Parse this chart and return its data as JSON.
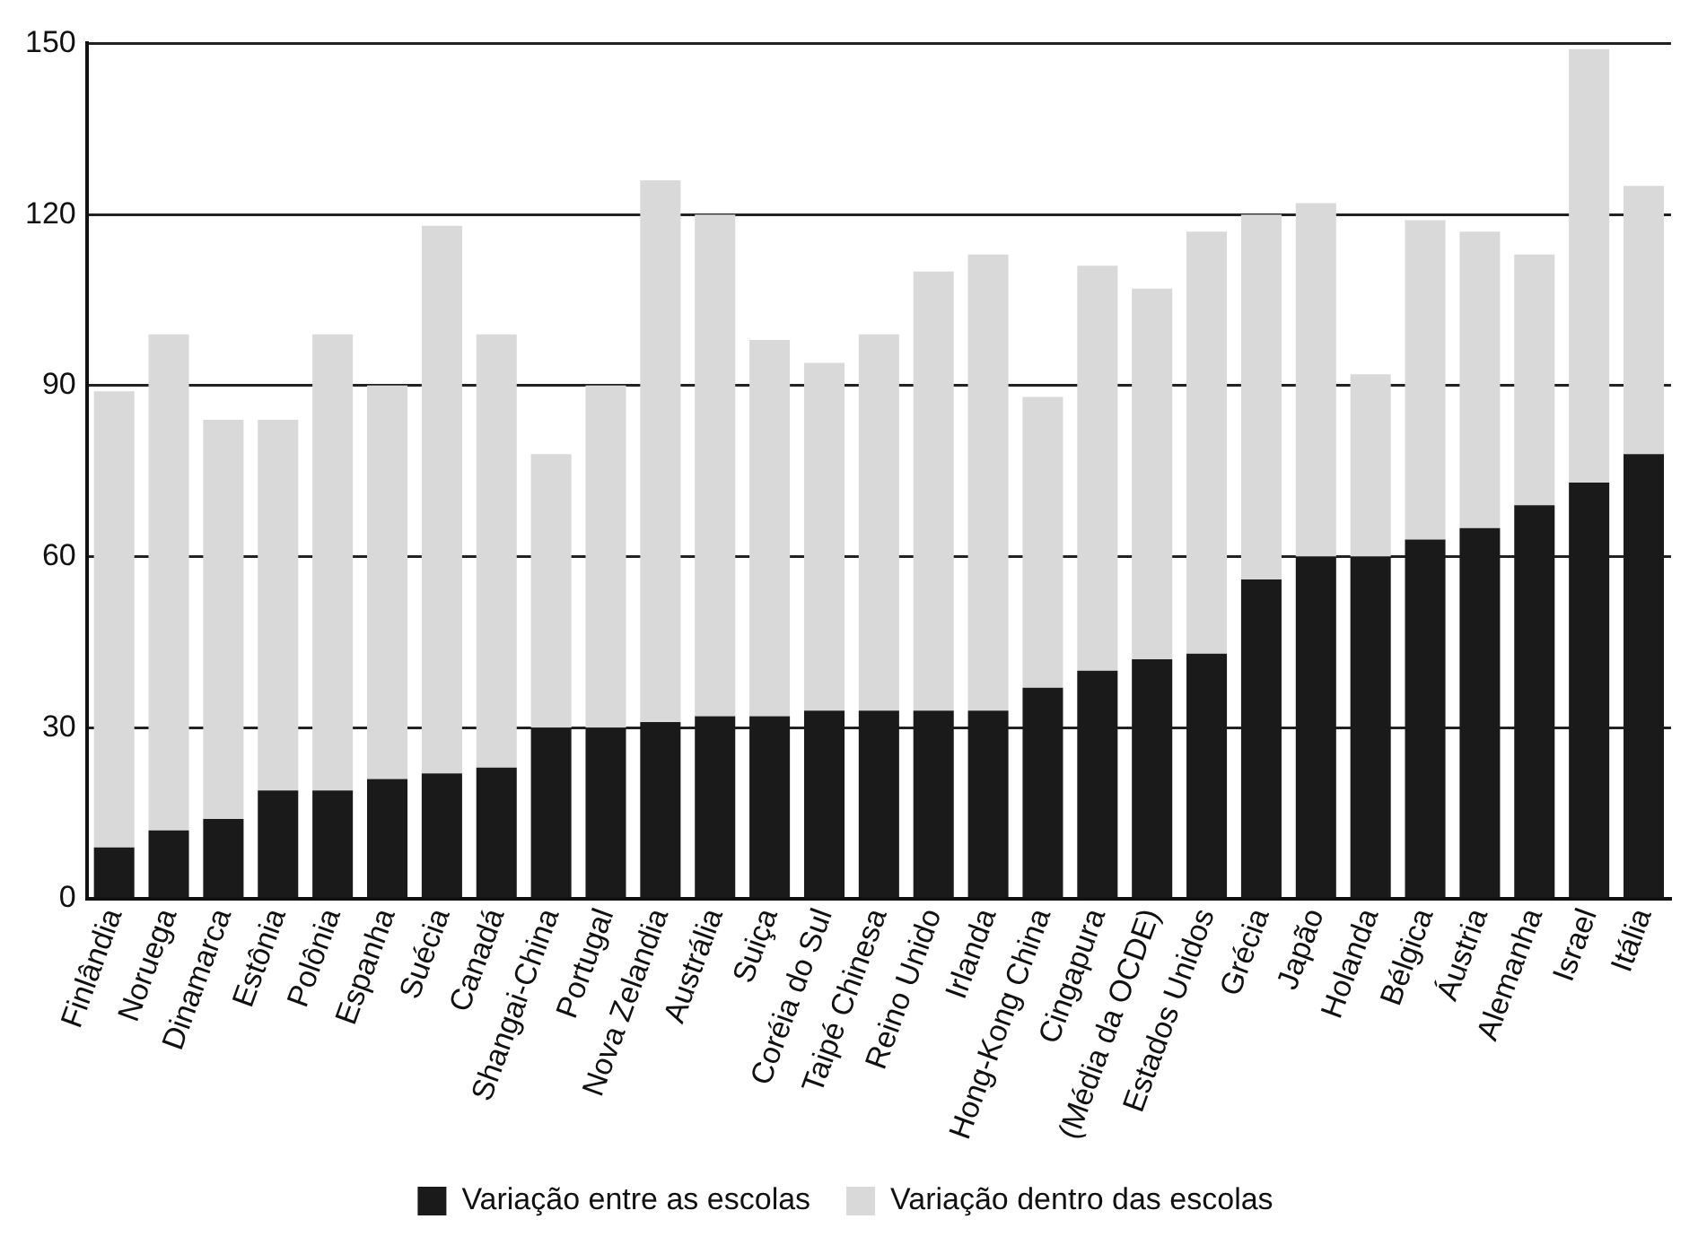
{
  "chart_data": {
    "type": "bar",
    "stacked": true,
    "categories": [
      "Finlândia",
      "Noruega",
      "Dinamarca",
      "Estônia",
      "Polônia",
      "Espanha",
      "Suécia",
      "Canadá",
      "Shangai-China",
      "Portugal",
      "Nova Zelandia",
      "Austrália",
      "Suiça",
      "Coréia do Sul",
      "Taipé Chinesa",
      "Reino Unido",
      "Irlanda",
      "Hong-Kong China",
      "Cingapura",
      "(Média da OCDE)",
      "Estados Unidos",
      "Grécia",
      "Japão",
      "Holanda",
      "Bélgica",
      "Áustria",
      "Alemanha",
      "Israel",
      "Itália"
    ],
    "series": [
      {
        "name": "Variação entre as escolas",
        "color": "#1a1a1a",
        "values": [
          9,
          12,
          14,
          19,
          19,
          21,
          22,
          23,
          30,
          30,
          31,
          32,
          32,
          33,
          33,
          33,
          33,
          37,
          40,
          42,
          43,
          56,
          60,
          60,
          63,
          65,
          69,
          73,
          78
        ]
      },
      {
        "name": "Variação dentro das escolas",
        "color": "#d9d9d9",
        "values": [
          80,
          87,
          70,
          65,
          80,
          69,
          96,
          76,
          48,
          60,
          95,
          88,
          66,
          61,
          66,
          77,
          80,
          51,
          71,
          65,
          74,
          64,
          62,
          32,
          56,
          52,
          44,
          76,
          47
        ]
      }
    ],
    "ylim": [
      0,
      150
    ],
    "yticks": [
      0,
      30,
      60,
      90,
      120,
      150
    ],
    "grid": "y",
    "legend": "bottom"
  }
}
